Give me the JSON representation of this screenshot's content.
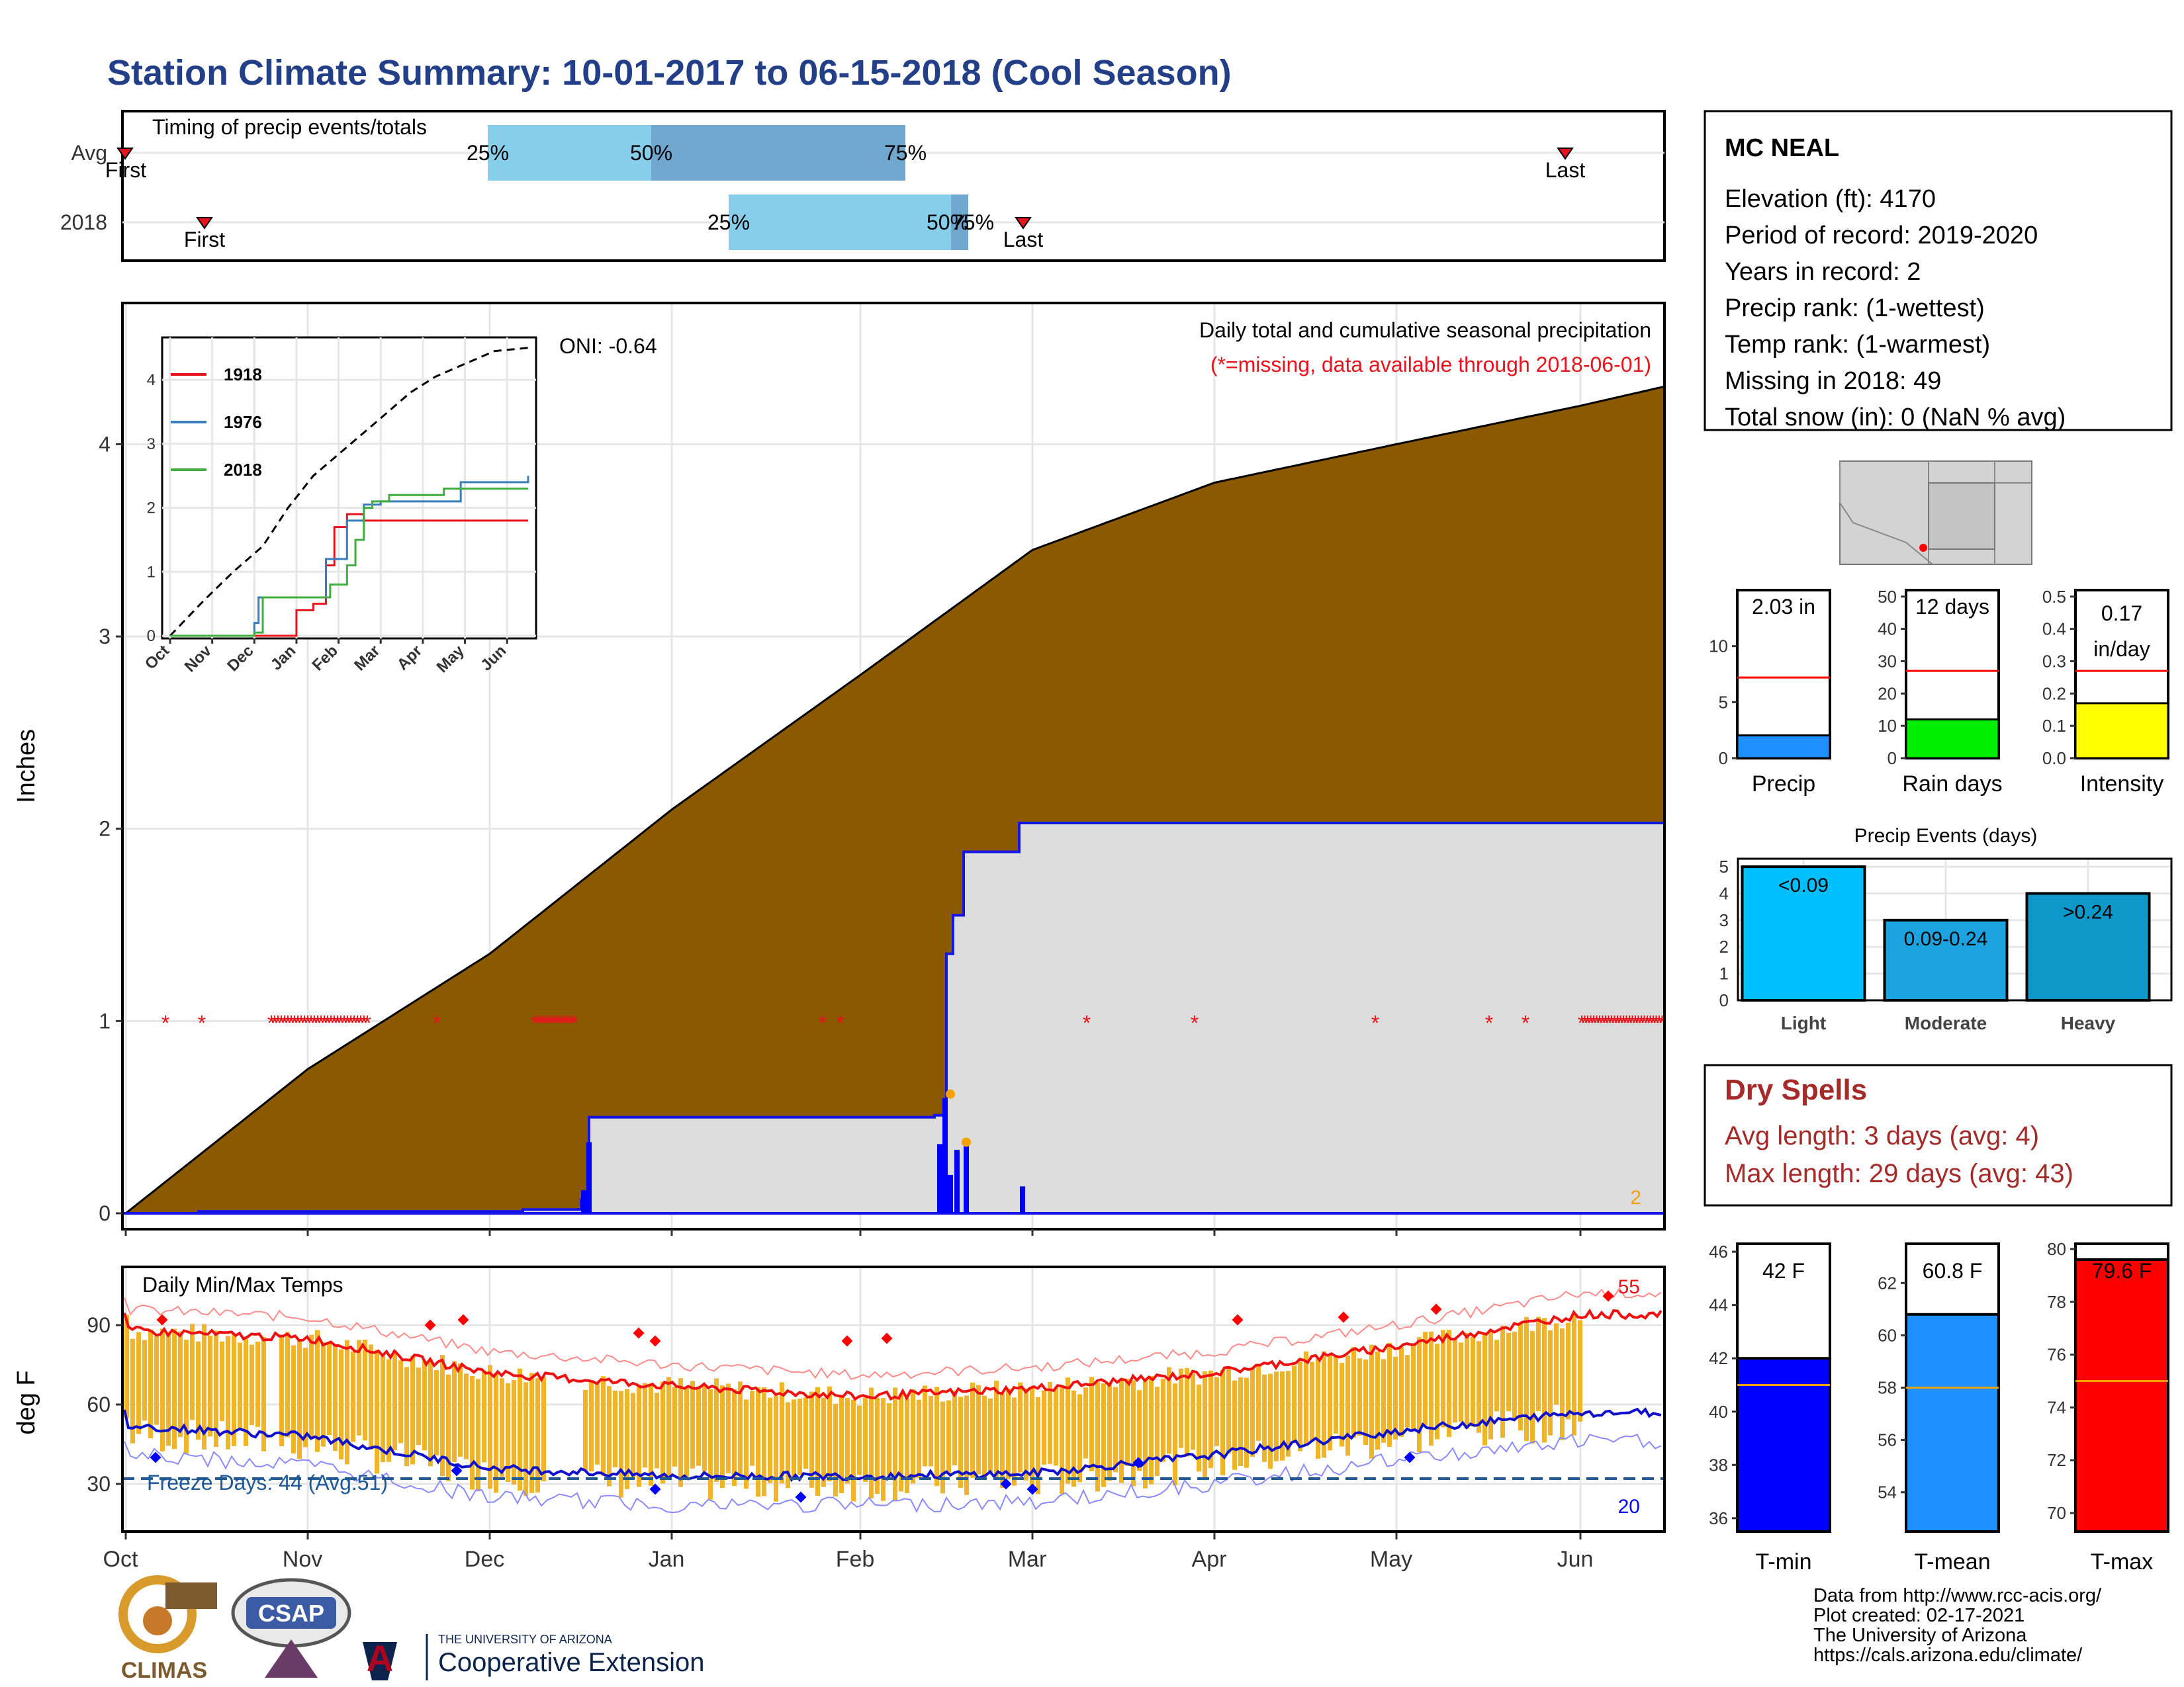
{
  "title": "Station Climate Summary: 10-01-2017 to 06-15-2018 (Cool Season)",
  "months": [
    "Oct",
    "Nov",
    "Dec",
    "Jan",
    "Feb",
    "Mar",
    "Apr",
    "May",
    "Jun"
  ],
  "timing": {
    "label": "Timing of precip events/totals",
    "rows": [
      {
        "name": "Avg",
        "first_label": "First",
        "last_label": "Last",
        "q25": "25%",
        "q50": "50%",
        "q75": "75%"
      },
      {
        "name": "2018",
        "first_label": "First",
        "last_label": "Last",
        "q25": "25%",
        "q50": "50%",
        "q75": "75%"
      }
    ]
  },
  "precip_panel": {
    "ylabel": "Inches",
    "yticks": [
      "0",
      "1",
      "2",
      "3",
      "4"
    ],
    "caption": "Daily total and cumulative seasonal precipitation",
    "missing_note": "(*=missing, data available through 2018-06-01)",
    "oni": "ONI: -0.64",
    "corner_value": "2"
  },
  "inset": {
    "yticks": [
      "0",
      "1",
      "2",
      "3",
      "4"
    ],
    "xticks": [
      "Oct",
      "Nov",
      "Dec",
      "Jan",
      "Feb",
      "Mar",
      "Apr",
      "May",
      "Jun"
    ],
    "legend": [
      {
        "name": "1918",
        "color": "#e8141c"
      },
      {
        "name": "1976",
        "color": "#3a7dbf"
      },
      {
        "name": "2018",
        "color": "#3fae3f"
      }
    ]
  },
  "temp_panel": {
    "ylabel": "deg F",
    "yticks": [
      "30",
      "60",
      "90"
    ],
    "title": "Daily Min/Max Temps",
    "freeze_text": "Freeze Days: 44 (Avg:51)",
    "corner_high": "55",
    "corner_low": "20"
  },
  "station": {
    "name": "MC NEAL",
    "lines": [
      "Elevation (ft): 4170",
      "Period of record: 2019-2020",
      "Years in record: 2",
      "Precip rank:  (1-wettest)",
      "Temp rank:  (1-warmest)",
      "Missing in 2018: 49",
      "Total snow (in): 0 (NaN % avg)"
    ]
  },
  "mini_bars": [
    {
      "label": "Precip",
      "value_text": "2.03 in",
      "yticks": [
        "0",
        "5",
        "10"
      ],
      "value": 2.03,
      "avg": 7.2,
      "max": 15,
      "color": "#1e90ff"
    },
    {
      "label": "Rain days",
      "value_text": "12 days",
      "yticks": [
        "0",
        "10",
        "20",
        "30",
        "40",
        "50"
      ],
      "value": 12,
      "avg": 27,
      "max": 52,
      "color": "#00ee00"
    },
    {
      "label": "Intensity",
      "value_text": "0.17 in/day",
      "value_line1": "0.17",
      "value_line2": "in/day",
      "yticks": [
        "0.0",
        "0.1",
        "0.2",
        "0.3",
        "0.4",
        "0.5"
      ],
      "value": 0.17,
      "avg": 0.27,
      "max": 0.52,
      "color": "#ffff00"
    }
  ],
  "precip_events": {
    "title": "Precip Events (days)",
    "yticks": [
      "0",
      "1",
      "2",
      "3",
      "4",
      "5"
    ],
    "bars": [
      {
        "category": "Light",
        "label": "<0.09",
        "value": 5,
        "color": "#00bfff"
      },
      {
        "category": "Moderate",
        "label": "0.09-0.24",
        "value": 3,
        "color": "#1ca3e0"
      },
      {
        "category": "Heavy",
        "label": ">0.24",
        "value": 4,
        "color": "#0e97c9"
      }
    ]
  },
  "dry_spells": {
    "title": "Dry Spells",
    "avg_text": "Avg length: 3 days (avg: 4)",
    "max_text": "Max length: 29 days (avg: 43)"
  },
  "temp_bars": [
    {
      "label": "T-min",
      "value_text": "42 F",
      "value": 42,
      "avg": 41,
      "ymin": 35.5,
      "ymax": 46.3,
      "yticks": [
        "36",
        "38",
        "40",
        "42",
        "44",
        "46"
      ],
      "color": "#0000ff"
    },
    {
      "label": "T-mean",
      "value_text": "60.8 F",
      "value": 60.8,
      "avg": 58,
      "ymin": 52.5,
      "ymax": 63.5,
      "yticks": [
        "54",
        "56",
        "58",
        "60",
        "62"
      ],
      "color": "#1e90ff"
    },
    {
      "label": "T-max",
      "value_text": "79.6 F",
      "value": 79.6,
      "avg": 75,
      "ymin": 69.3,
      "ymax": 80.2,
      "yticks": [
        "70",
        "72",
        "74",
        "76",
        "78",
        "80"
      ],
      "color": "#ff0000"
    }
  ],
  "credits": [
    "Data from http://www.rcc-acis.org/",
    "Plot created: 02-17-2021",
    "The University of Arizona",
    "https://cals.arizona.edu/climate/"
  ],
  "logos": {
    "climas": "CLIMAS",
    "csap": "CSAP",
    "ua_small": "THE UNIVERSITY OF ARIZONA",
    "ua_big": "Cooperative Extension"
  },
  "chart_data": [
    {
      "type": "area",
      "title": "Daily total and cumulative seasonal precipitation",
      "ylabel": "Inches",
      "ylim": [
        0,
        4.7
      ],
      "x": [
        "2017-10-01",
        "2017-11-01",
        "2017-12-01",
        "2018-01-01",
        "2018-02-01",
        "2018-03-01",
        "2018-04-01",
        "2018-05-01",
        "2018-06-01",
        "2018-06-15"
      ],
      "series": [
        {
          "name": "Avg",
          "values": [
            0.0,
            0.75,
            1.35,
            2.1,
            2.8,
            3.45,
            3.8,
            4.0,
            4.2,
            4.3
          ]
        },
        {
          "name": "2018",
          "values": [
            0.0,
            0.0,
            0.02,
            0.5,
            0.5,
            2.03,
            2.03,
            2.03,
            2.03,
            2.03
          ]
        }
      ]
    },
    {
      "type": "line",
      "title": "Daily Min/Max Temps",
      "ylabel": "deg F",
      "ylim": [
        10,
        110
      ],
      "x": [
        "Oct",
        "Nov",
        "Dec",
        "Jan",
        "Feb",
        "Mar",
        "Apr",
        "May",
        "Jun"
      ],
      "series": [
        {
          "name": "Avg max",
          "values": [
            88,
            85,
            72,
            67,
            63,
            66,
            72,
            82,
            94
          ]
        },
        {
          "name": "Avg min",
          "values": [
            52,
            48,
            36,
            33,
            33,
            34,
            41,
            50,
            57
          ]
        }
      ]
    }
  ]
}
